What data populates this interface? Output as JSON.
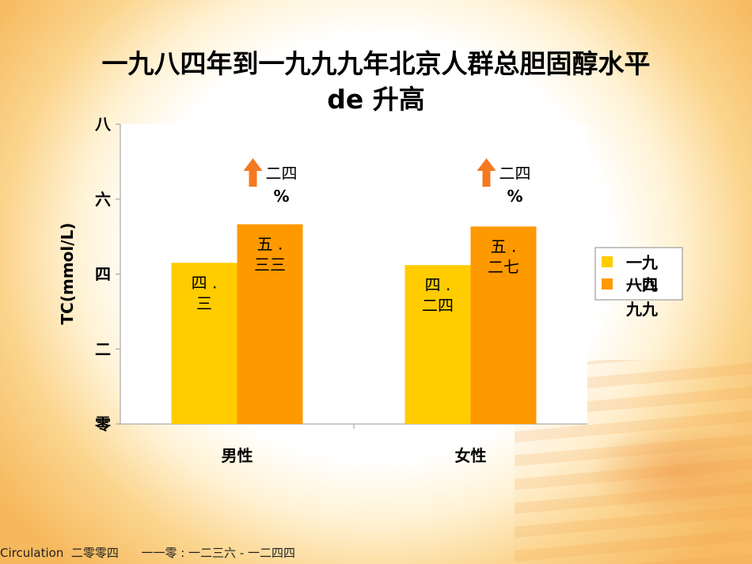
{
  "title_line1": "一九八四年到一九九九年北京人群总胆固醇水平",
  "title_line2": "de 升高",
  "footer": "Circulation  二零零四      一一零 : 一二三六 - 一二四四",
  "chart_data": {
    "type": "bar",
    "categories": [
      "男性",
      "女性"
    ],
    "series": [
      {
        "name": "一九八四",
        "values": [
          4.3,
          4.24
        ],
        "labels": [
          "四 .\n三",
          "四 .\n二四"
        ],
        "color": "#ffcc00"
      },
      {
        "name": "一九九九",
        "values": [
          5.33,
          5.27
        ],
        "labels": [
          "五 .\n三三",
          "五 .\n二七"
        ],
        "color": "#ff9900"
      }
    ],
    "ylabel": "TC(mmol/L)",
    "ylim": [
      0,
      8
    ],
    "yticks": [
      {
        "value": 0,
        "label": "零"
      },
      {
        "value": 2,
        "label": "二"
      },
      {
        "value": 4,
        "label": "四"
      },
      {
        "value": 6,
        "label": "六"
      },
      {
        "value": 8,
        "label": "八"
      }
    ],
    "annotations": [
      {
        "category": "男性",
        "text_line1": "二四",
        "text_line2": "%"
      },
      {
        "category": "女性",
        "text_line1": "二四",
        "text_line2": "%"
      }
    ],
    "legend_position": "right",
    "arrow_color": "#f47920",
    "grid": false
  }
}
